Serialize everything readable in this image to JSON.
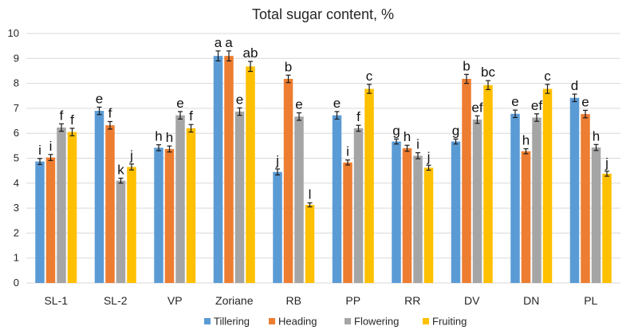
{
  "chart_data": {
    "type": "bar",
    "title": "Total sugar content, %",
    "xlabel": "",
    "ylabel": "",
    "ylim": [
      0,
      10
    ],
    "yticks": [
      0,
      1,
      2,
      3,
      4,
      5,
      6,
      7,
      8,
      9,
      10
    ],
    "grid": true,
    "legend_position": "bottom",
    "categories": [
      "SL-1",
      "SL-2",
      "VP",
      "Zoriane",
      "RB",
      "PP",
      "RR",
      "DV",
      "DN",
      "PL"
    ],
    "series": [
      {
        "name": "Tillering",
        "color": "#5b9bd5",
        "values": [
          4.87,
          6.9,
          5.42,
          9.1,
          4.45,
          6.72,
          5.67,
          5.67,
          6.78,
          7.42
        ],
        "errors": [
          0.12,
          0.15,
          0.12,
          0.2,
          0.12,
          0.15,
          0.1,
          0.1,
          0.15,
          0.15
        ],
        "labels": [
          "i",
          "e",
          "h",
          "a",
          "j",
          "e",
          "g",
          "g",
          "e",
          "d"
        ]
      },
      {
        "name": "Heading",
        "color": "#ed7d31",
        "values": [
          5.03,
          6.32,
          5.37,
          9.1,
          8.18,
          4.83,
          5.4,
          8.18,
          5.28,
          6.77
        ],
        "errors": [
          0.12,
          0.15,
          0.12,
          0.2,
          0.15,
          0.1,
          0.12,
          0.18,
          0.1,
          0.15
        ],
        "labels": [
          "i",
          "f",
          "h",
          "a",
          "b",
          "i",
          "h",
          "b",
          "h",
          "e"
        ]
      },
      {
        "name": "Flowering",
        "color": "#a5a5a5",
        "values": [
          6.23,
          4.1,
          6.72,
          6.87,
          6.67,
          6.2,
          5.1,
          6.55,
          6.63,
          5.43
        ],
        "errors": [
          0.15,
          0.1,
          0.15,
          0.15,
          0.15,
          0.12,
          0.12,
          0.15,
          0.15,
          0.12
        ],
        "labels": [
          "f",
          "k",
          "e",
          "e",
          "e",
          "f",
          "i",
          "ef",
          "ef",
          "h"
        ]
      },
      {
        "name": "Fruiting",
        "color": "#ffc000",
        "values": [
          6.05,
          4.65,
          6.2,
          8.68,
          3.13,
          7.78,
          4.62,
          7.93,
          7.78,
          4.38
        ],
        "errors": [
          0.15,
          0.12,
          0.15,
          0.2,
          0.08,
          0.18,
          0.1,
          0.18,
          0.18,
          0.1
        ],
        "labels": [
          "f",
          "j",
          "f",
          "ab",
          "l",
          "c",
          "j",
          "bc",
          "c",
          "j"
        ]
      }
    ]
  }
}
